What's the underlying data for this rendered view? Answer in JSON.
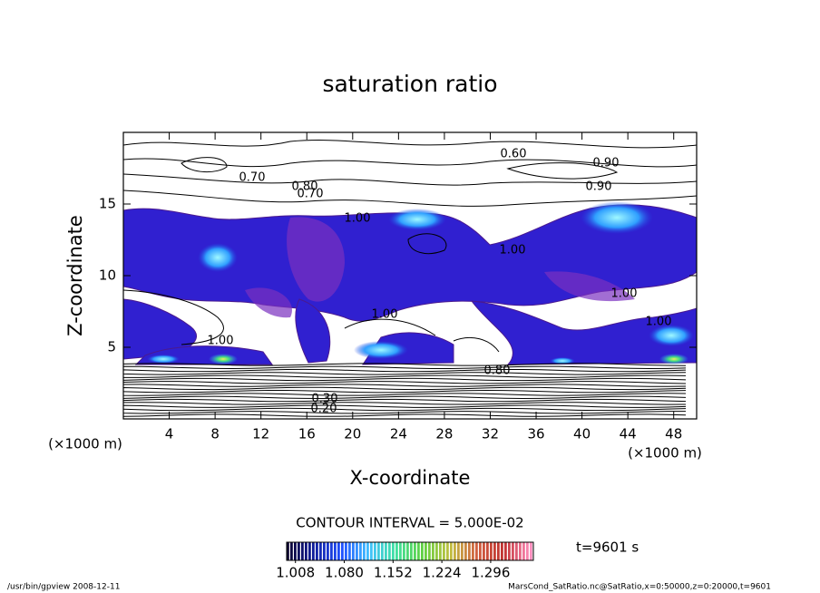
{
  "chart_data": {
    "type": "contour",
    "title": "saturation ratio",
    "x_label": "X-coordinate",
    "y_label": "Z-coordinate",
    "x_unit": "(×1000 m)",
    "y_unit": "(×1000 m)",
    "xlim": [
      0,
      50
    ],
    "ylim": [
      0,
      20
    ],
    "xticks": [
      4,
      8,
      12,
      16,
      20,
      24,
      28,
      32,
      36,
      40,
      44,
      48
    ],
    "yticks": [
      5,
      10,
      15
    ],
    "contour_interval": "CONTOUR INTERVAL = 5.000E-02",
    "contour_labels": [
      {
        "value": 0.6,
        "label": "0.60"
      },
      {
        "value": 0.7,
        "label": "0.70"
      },
      {
        "value": 0.8,
        "label": "0.80"
      },
      {
        "value": 0.9,
        "label": "0.90"
      },
      {
        "value": 0.7,
        "label": "0.70"
      },
      {
        "value": 0.9,
        "label": "0.90"
      },
      {
        "value": 1.0,
        "label": "1.00"
      },
      {
        "value": 1.0,
        "label": "1.00"
      },
      {
        "value": 1.0,
        "label": "1.00"
      },
      {
        "value": 1.0,
        "label": "1.00"
      },
      {
        "value": 1.0,
        "label": "1.00"
      },
      {
        "value": 1.0,
        "label": "1.00"
      },
      {
        "value": 0.8,
        "label": "0.80"
      },
      {
        "value": 0.3,
        "label": "0.30"
      },
      {
        "value": 0.2,
        "label": "0.20"
      }
    ],
    "colorbar": {
      "lim": [
        0.995,
        1.359
      ],
      "ticks": [
        1.008,
        {
          "value": 1.08,
          "label": "1.080"
        },
        1.152,
        1.224,
        1.296
      ],
      "colormap": [
        "#0a0030",
        "#1020a0",
        "#2050ff",
        "#40c0ff",
        "#40e0a0",
        "#60d040",
        "#c0c040",
        "#d06040",
        "#c03030",
        "#ff90c0"
      ]
    },
    "time_label": "t=9601 s",
    "footer_left": "/usr/bin/gpview   2008-12-11",
    "footer_right": "MarsCond_SatRatio.nc@SatRatio,x=0:50000,z=0:20000,t=9601"
  }
}
